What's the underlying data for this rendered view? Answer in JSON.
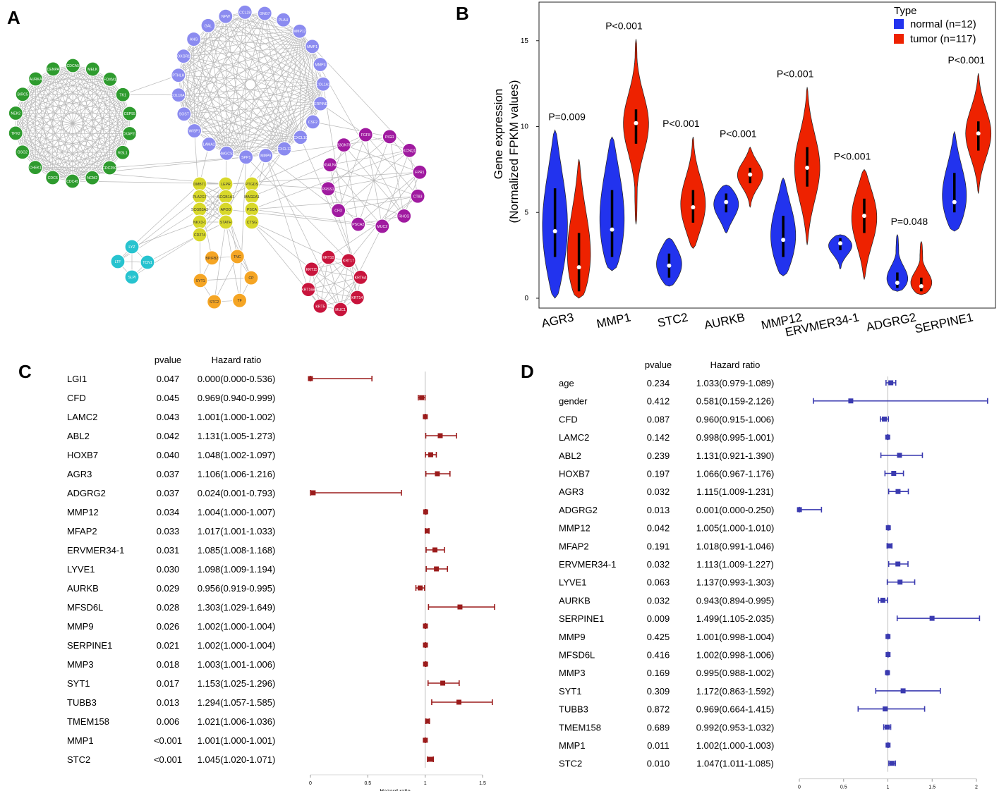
{
  "panels": {
    "a": "A",
    "b": "B",
    "c": "C",
    "d": "D"
  },
  "colors": {
    "green": "#2e9b2e",
    "blue": "#8b8bf0",
    "purple": "#a01aa0",
    "yellow": "#d8d82a",
    "cyan": "#27c3cf",
    "orange": "#f5a524",
    "red": "#c8143c",
    "normal": "#2233ee",
    "tumor": "#ee2200",
    "forest_c": "#9b1b1b",
    "forest_d": "#3a3ab0"
  },
  "network": {
    "green": [
      "TK1",
      "CEP55",
      "CKAP2L",
      "RGL1",
      "CDC25C",
      "NCM2",
      "CDC45",
      "CDC6",
      "CHEK1",
      "GSG2",
      "TPX2",
      "NEK2",
      "BIRC5",
      "AURKA",
      "CENPA",
      "CDCA5",
      "MELK",
      "FOXM1"
    ],
    "blue": [
      "PLAU",
      "MMP12",
      "MMP1",
      "MMP3",
      "COL1A1",
      "SERPINE1",
      "CSF2",
      "CXCL10",
      "CXCL12",
      "MMP9",
      "SPP1",
      "HMGCS2",
      "LAMA2",
      "WISP1",
      "SOST",
      "COL10A1",
      "PTHLH",
      "OXGR1",
      "ANG",
      "GAL",
      "NPW",
      "CCL28",
      "GNG7"
    ],
    "purple": [
      "FGF8",
      "PIGR",
      "KCNQ1",
      "FPR1",
      "CT83",
      "RHCG",
      "MUC2",
      "PSCA2",
      "CFD",
      "PRSS1",
      "ST6GALNAC1",
      "B3GNT6"
    ],
    "yellow": [
      "DMBT1",
      "LEPR",
      "PTGDS",
      "PLA2G7",
      "SCGB1A1",
      "MAGEA1",
      "SCGB3A2",
      "APOD",
      "PSCA",
      "NKX3-1",
      "STATH",
      "CTSG",
      "CD274"
    ],
    "cyan": [
      "LYZ",
      "TCN1",
      "SLPI",
      "LTF"
    ],
    "orange": [
      "TNC",
      "CP",
      "TF",
      "STC2",
      "SYT1",
      "BPIFB2"
    ],
    "red": [
      "KRT10",
      "KRT17",
      "KRT6A",
      "KRT14",
      "MUC1",
      "KRT5",
      "KRT16B",
      "KRT15"
    ]
  },
  "chart_data": [
    {
      "panel": "B",
      "type": "violin",
      "ylabel": "Gene expression",
      "ylabel2": "(Normalized FPKM values)",
      "ylim": [
        0,
        16
      ],
      "yticks": [
        "0",
        "5",
        "10",
        "15"
      ],
      "legend": {
        "title": "Type",
        "position": "top-right",
        "entries": [
          "normal (n=12)",
          "tumor (n=117)"
        ]
      },
      "categories": [
        "AGR3",
        "MMP1",
        "STC2",
        "AURKB",
        "MMP12",
        "ERVMER34-1",
        "ADGRG2",
        "SERPINE1"
      ],
      "pvalues": [
        "P=0.009",
        "P<0.001",
        "P<0.001",
        "P<0.001",
        "P<0.001",
        "P<0.001",
        "P=0.048",
        "P<0.001"
      ],
      "series": [
        {
          "name": "normal",
          "min": [
            0,
            1.6,
            0.7,
            3.8,
            1.3,
            1.7,
            0.4,
            3.9
          ],
          "q1": [
            2.4,
            2.4,
            1.2,
            5.0,
            2.4,
            2.8,
            0.6,
            5.0
          ],
          "median": [
            3.9,
            4.0,
            1.9,
            5.6,
            3.4,
            3.2,
            0.9,
            5.6
          ],
          "q3": [
            6.4,
            6.3,
            2.6,
            6.1,
            4.8,
            3.5,
            1.5,
            7.3
          ],
          "max": [
            9.8,
            9.4,
            3.5,
            6.6,
            7.0,
            3.7,
            3.7,
            9.7
          ]
        },
        {
          "name": "tumor",
          "min": [
            0,
            4.3,
            2.9,
            5.3,
            3.1,
            1.1,
            0.2,
            6.1
          ],
          "q1": [
            0.4,
            9.0,
            4.4,
            6.7,
            6.5,
            3.8,
            0.4,
            8.6
          ],
          "median": [
            1.8,
            10.2,
            5.3,
            7.2,
            7.6,
            4.8,
            0.7,
            9.6
          ],
          "q3": [
            3.8,
            11.0,
            6.3,
            7.6,
            8.8,
            5.8,
            1.2,
            10.3
          ],
          "max": [
            8.1,
            15.1,
            9.4,
            8.8,
            12.3,
            7.5,
            3.3,
            13.1
          ]
        }
      ]
    },
    {
      "panel": "C",
      "type": "forest",
      "headers": {
        "pvalue": "pvalue",
        "hr": "Hazard ratio"
      },
      "xlabel": "Hazard ratio",
      "xlim": [
        0,
        1.5
      ],
      "xticks": [
        "0",
        "0.5",
        "1",
        "1.5"
      ],
      "rows": [
        {
          "gene": "LGI1",
          "p": "0.047",
          "hr_text": "0.000(0.000-0.536)",
          "hr": 0.0,
          "lo": 0.0,
          "hi": 0.536
        },
        {
          "gene": "CFD",
          "p": "0.045",
          "hr_text": "0.969(0.940-0.999)",
          "hr": 0.969,
          "lo": 0.94,
          "hi": 0.999
        },
        {
          "gene": "LAMC2",
          "p": "0.043",
          "hr_text": "1.001(1.000-1.002)",
          "hr": 1.001,
          "lo": 1.0,
          "hi": 1.002
        },
        {
          "gene": "ABL2",
          "p": "0.042",
          "hr_text": "1.131(1.005-1.273)",
          "hr": 1.131,
          "lo": 1.005,
          "hi": 1.273
        },
        {
          "gene": "HOXB7",
          "p": "0.040",
          "hr_text": "1.048(1.002-1.097)",
          "hr": 1.048,
          "lo": 1.002,
          "hi": 1.097
        },
        {
          "gene": "AGR3",
          "p": "0.037",
          "hr_text": "1.106(1.006-1.216)",
          "hr": 1.106,
          "lo": 1.006,
          "hi": 1.216
        },
        {
          "gene": "ADGRG2",
          "p": "0.037",
          "hr_text": "0.024(0.001-0.793)",
          "hr": 0.024,
          "lo": 0.001,
          "hi": 0.793
        },
        {
          "gene": "MMP12",
          "p": "0.034",
          "hr_text": "1.004(1.000-1.007)",
          "hr": 1.004,
          "lo": 1.0,
          "hi": 1.007
        },
        {
          "gene": "MFAP2",
          "p": "0.033",
          "hr_text": "1.017(1.001-1.033)",
          "hr": 1.017,
          "lo": 1.001,
          "hi": 1.033
        },
        {
          "gene": "ERVMER34-1",
          "p": "0.031",
          "hr_text": "1.085(1.008-1.168)",
          "hr": 1.085,
          "lo": 1.008,
          "hi": 1.168
        },
        {
          "gene": "LYVE1",
          "p": "0.030",
          "hr_text": "1.098(1.009-1.194)",
          "hr": 1.098,
          "lo": 1.009,
          "hi": 1.194
        },
        {
          "gene": "AURKB",
          "p": "0.029",
          "hr_text": "0.956(0.919-0.995)",
          "hr": 0.956,
          "lo": 0.919,
          "hi": 0.995
        },
        {
          "gene": "MFSD6L",
          "p": "0.028",
          "hr_text": "1.303(1.029-1.649)",
          "hr": 1.303,
          "lo": 1.029,
          "hi": 1.649
        },
        {
          "gene": "MMP9",
          "p": "0.026",
          "hr_text": "1.002(1.000-1.004)",
          "hr": 1.002,
          "lo": 1.0,
          "hi": 1.004
        },
        {
          "gene": "SERPINE1",
          "p": "0.021",
          "hr_text": "1.002(1.000-1.004)",
          "hr": 1.002,
          "lo": 1.0,
          "hi": 1.004
        },
        {
          "gene": "MMP3",
          "p": "0.018",
          "hr_text": "1.003(1.001-1.006)",
          "hr": 1.003,
          "lo": 1.001,
          "hi": 1.006
        },
        {
          "gene": "SYT1",
          "p": "0.017",
          "hr_text": "1.153(1.025-1.296)",
          "hr": 1.153,
          "lo": 1.025,
          "hi": 1.296
        },
        {
          "gene": "TUBB3",
          "p": "0.013",
          "hr_text": "1.294(1.057-1.585)",
          "hr": 1.294,
          "lo": 1.057,
          "hi": 1.585
        },
        {
          "gene": "TMEM158",
          "p": "0.006",
          "hr_text": "1.021(1.006-1.036)",
          "hr": 1.021,
          "lo": 1.006,
          "hi": 1.036
        },
        {
          "gene": "MMP1",
          "p": "<0.001",
          "hr_text": "1.001(1.000-1.001)",
          "hr": 1.001,
          "lo": 1.0,
          "hi": 1.001
        },
        {
          "gene": "STC2",
          "p": "<0.001",
          "hr_text": "1.045(1.020-1.071)",
          "hr": 1.045,
          "lo": 1.02,
          "hi": 1.071
        }
      ]
    },
    {
      "panel": "D",
      "type": "forest",
      "headers": {
        "pvalue": "pvalue",
        "hr": "Hazard ratio"
      },
      "xlabel": "Hazard ratio",
      "xlim": [
        0,
        2
      ],
      "xticks": [
        "0",
        "0.5",
        "1",
        "1.5",
        "2"
      ],
      "rows": [
        {
          "gene": "age",
          "p": "0.234",
          "hr_text": "1.033(0.979-1.089)",
          "hr": 1.033,
          "lo": 0.979,
          "hi": 1.089
        },
        {
          "gene": "gender",
          "p": "0.412",
          "hr_text": "0.581(0.159-2.126)",
          "hr": 0.581,
          "lo": 0.159,
          "hi": 2.126
        },
        {
          "gene": "CFD",
          "p": "0.087",
          "hr_text": "0.960(0.915-1.006)",
          "hr": 0.96,
          "lo": 0.915,
          "hi": 1.006
        },
        {
          "gene": "LAMC2",
          "p": "0.142",
          "hr_text": "0.998(0.995-1.001)",
          "hr": 0.998,
          "lo": 0.995,
          "hi": 1.001
        },
        {
          "gene": "ABL2",
          "p": "0.239",
          "hr_text": "1.131(0.921-1.390)",
          "hr": 1.131,
          "lo": 0.921,
          "hi": 1.39
        },
        {
          "gene": "HOXB7",
          "p": "0.197",
          "hr_text": "1.066(0.967-1.176)",
          "hr": 1.066,
          "lo": 0.967,
          "hi": 1.176
        },
        {
          "gene": "AGR3",
          "p": "0.032",
          "hr_text": "1.115(1.009-1.231)",
          "hr": 1.115,
          "lo": 1.009,
          "hi": 1.231
        },
        {
          "gene": "ADGRG2",
          "p": "0.013",
          "hr_text": "0.001(0.000-0.250)",
          "hr": 0.001,
          "lo": 0.0,
          "hi": 0.25
        },
        {
          "gene": "MMP12",
          "p": "0.042",
          "hr_text": "1.005(1.000-1.010)",
          "hr": 1.005,
          "lo": 1.0,
          "hi": 1.01
        },
        {
          "gene": "MFAP2",
          "p": "0.191",
          "hr_text": "1.018(0.991-1.046)",
          "hr": 1.018,
          "lo": 0.991,
          "hi": 1.046
        },
        {
          "gene": "ERVMER34-1",
          "p": "0.032",
          "hr_text": "1.113(1.009-1.227)",
          "hr": 1.113,
          "lo": 1.009,
          "hi": 1.227
        },
        {
          "gene": "LYVE1",
          "p": "0.063",
          "hr_text": "1.137(0.993-1.303)",
          "hr": 1.137,
          "lo": 0.993,
          "hi": 1.303
        },
        {
          "gene": "AURKB",
          "p": "0.032",
          "hr_text": "0.943(0.894-0.995)",
          "hr": 0.943,
          "lo": 0.894,
          "hi": 0.995
        },
        {
          "gene": "SERPINE1",
          "p": "0.009",
          "hr_text": "1.499(1.105-2.035)",
          "hr": 1.499,
          "lo": 1.105,
          "hi": 2.035
        },
        {
          "gene": "MMP9",
          "p": "0.425",
          "hr_text": "1.001(0.998-1.004)",
          "hr": 1.001,
          "lo": 0.998,
          "hi": 1.004
        },
        {
          "gene": "MFSD6L",
          "p": "0.416",
          "hr_text": "1.002(0.998-1.006)",
          "hr": 1.002,
          "lo": 0.998,
          "hi": 1.006
        },
        {
          "gene": "MMP3",
          "p": "0.169",
          "hr_text": "0.995(0.988-1.002)",
          "hr": 0.995,
          "lo": 0.988,
          "hi": 1.002
        },
        {
          "gene": "SYT1",
          "p": "0.309",
          "hr_text": "1.172(0.863-1.592)",
          "hr": 1.172,
          "lo": 0.863,
          "hi": 1.592
        },
        {
          "gene": "TUBB3",
          "p": "0.872",
          "hr_text": "0.969(0.664-1.415)",
          "hr": 0.969,
          "lo": 0.664,
          "hi": 1.415
        },
        {
          "gene": "TMEM158",
          "p": "0.689",
          "hr_text": "0.992(0.953-1.032)",
          "hr": 0.992,
          "lo": 0.953,
          "hi": 1.032
        },
        {
          "gene": "MMP1",
          "p": "0.011",
          "hr_text": "1.002(1.000-1.003)",
          "hr": 1.002,
          "lo": 1.0,
          "hi": 1.003
        },
        {
          "gene": "STC2",
          "p": "0.010",
          "hr_text": "1.047(1.011-1.085)",
          "hr": 1.047,
          "lo": 1.011,
          "hi": 1.085
        }
      ]
    }
  ]
}
